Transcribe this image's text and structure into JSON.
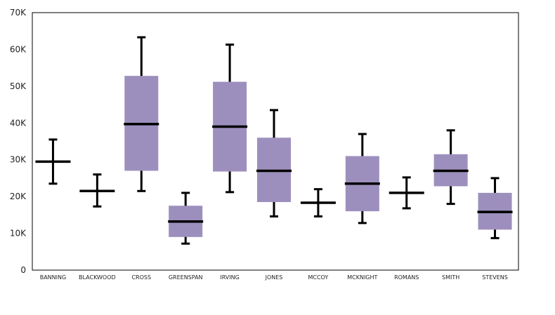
{
  "chart_data": {
    "type": "boxplot",
    "title": "",
    "xlabel": "",
    "ylabel": "",
    "ylim": [
      0,
      70000
    ],
    "y_ticks": [
      {
        "value": 0,
        "label": "0"
      },
      {
        "value": 10000,
        "label": "10K"
      },
      {
        "value": 20000,
        "label": "20K"
      },
      {
        "value": 30000,
        "label": "30K"
      },
      {
        "value": 40000,
        "label": "40K"
      },
      {
        "value": 50000,
        "label": "50K"
      },
      {
        "value": 60000,
        "label": "60K"
      },
      {
        "value": 70000,
        "label": "70K"
      }
    ],
    "grid": false,
    "categories": [
      "BANNING",
      "BLACKWOOD",
      "CROSS",
      "GREENSPAN",
      "IRVING",
      "JONES",
      "MCCOY",
      "MCKNIGHT",
      "ROMANS",
      "SMITH",
      "STEVENS"
    ],
    "boxes": [
      {
        "min": 23500,
        "q1": 29500,
        "median": 29500,
        "q3": 29500,
        "max": 35500
      },
      {
        "min": 17300,
        "q1": 21500,
        "median": 21500,
        "q3": 21500,
        "max": 26000
      },
      {
        "min": 21500,
        "q1": 27000,
        "median": 39700,
        "q3": 52800,
        "max": 63300
      },
      {
        "min": 7200,
        "q1": 9000,
        "median": 13200,
        "q3": 17500,
        "max": 21000
      },
      {
        "min": 21200,
        "q1": 26800,
        "median": 39000,
        "q3": 51200,
        "max": 61300
      },
      {
        "min": 14600,
        "q1": 18500,
        "median": 27000,
        "q3": 36000,
        "max": 43500
      },
      {
        "min": 14600,
        "q1": 18300,
        "median": 18300,
        "q3": 18300,
        "max": 22000
      },
      {
        "min": 12800,
        "q1": 16000,
        "median": 23500,
        "q3": 31000,
        "max": 37000
      },
      {
        "min": 16800,
        "q1": 21000,
        "median": 21000,
        "q3": 21000,
        "max": 25200
      },
      {
        "min": 18000,
        "q1": 22800,
        "median": 27000,
        "q3": 31500,
        "max": 38000
      },
      {
        "min": 8700,
        "q1": 11000,
        "median": 15800,
        "q3": 21000,
        "max": 25000
      }
    ],
    "colors": {
      "box_fill": "#9d8fbd",
      "median": "#000000",
      "whisker": "#000000",
      "axis": "#000000"
    }
  }
}
